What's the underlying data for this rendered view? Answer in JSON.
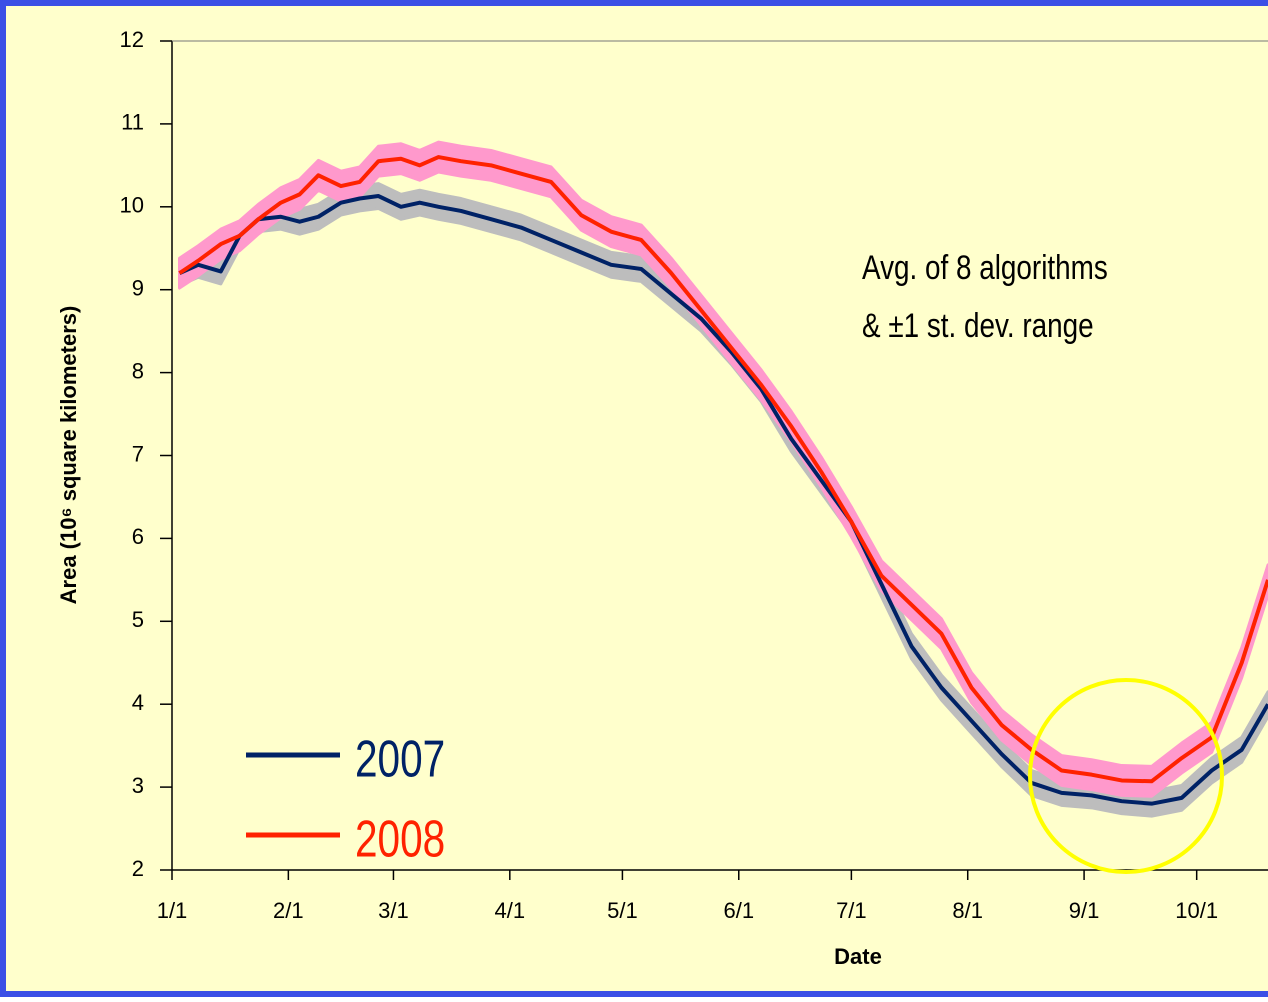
{
  "chart_data": {
    "type": "line",
    "ylabel": "Area (10⁶ square kilometers)",
    "xlabel": "Date",
    "annotations": [
      "Avg. of 8 algorithms",
      "& ±1 st. dev. range"
    ],
    "x": [
      2,
      7,
      13,
      18,
      23,
      29,
      34,
      39,
      45,
      50,
      55,
      61,
      66,
      71,
      77,
      85,
      93,
      101,
      109,
      117,
      125,
      133,
      141,
      149,
      157,
      165,
      173,
      181,
      189,
      197,
      205,
      213,
      221,
      229,
      237,
      245,
      253,
      261,
      269,
      277,
      285,
      292
    ],
    "series": [
      {
        "name": "2007",
        "color": "#002266",
        "band_color": "#bdbdbd",
        "std_dev": 0.15,
        "values": [
          9.2,
          9.3,
          9.22,
          9.65,
          9.85,
          9.88,
          9.82,
          9.88,
          10.05,
          10.1,
          10.13,
          10.0,
          10.05,
          10.0,
          9.95,
          9.85,
          9.75,
          9.6,
          9.45,
          9.3,
          9.25,
          8.95,
          8.65,
          8.25,
          7.8,
          7.2,
          6.7,
          6.2,
          5.45,
          4.7,
          4.2,
          3.8,
          3.4,
          3.05,
          2.93,
          2.9,
          2.83,
          2.8,
          2.87,
          3.2,
          3.45,
          4.0
        ]
      },
      {
        "name": "2008",
        "color": "#ff2200",
        "band_color": "#ff99cc",
        "std_dev": 0.18,
        "values": [
          9.2,
          9.35,
          9.55,
          9.65,
          9.85,
          10.05,
          10.15,
          10.38,
          10.25,
          10.3,
          10.55,
          10.58,
          10.5,
          10.6,
          10.55,
          10.5,
          10.4,
          10.3,
          9.9,
          9.7,
          9.6,
          9.2,
          8.75,
          8.3,
          7.85,
          7.35,
          6.8,
          6.2,
          5.55,
          5.2,
          4.85,
          4.2,
          3.75,
          3.45,
          3.2,
          3.15,
          3.08,
          3.07,
          3.35,
          3.6,
          4.5,
          5.5
        ]
      }
    ],
    "xlim": [
      0,
      292
    ],
    "xticks": [
      {
        "value": 0,
        "label": "1/1"
      },
      {
        "value": 31,
        "label": "2/1"
      },
      {
        "value": 59,
        "label": "3/1"
      },
      {
        "value": 90,
        "label": "4/1"
      },
      {
        "value": 120,
        "label": "5/1"
      },
      {
        "value": 151,
        "label": "6/1"
      },
      {
        "value": 181,
        "label": "7/1"
      },
      {
        "value": 212,
        "label": "8/1"
      },
      {
        "value": 243,
        "label": "9/1"
      },
      {
        "value": 273,
        "label": "10/1"
      }
    ],
    "ylim": [
      2,
      12
    ],
    "yticks": [
      2,
      3,
      4,
      5,
      6,
      7,
      8,
      9,
      10,
      11,
      12
    ],
    "grid": false
  }
}
